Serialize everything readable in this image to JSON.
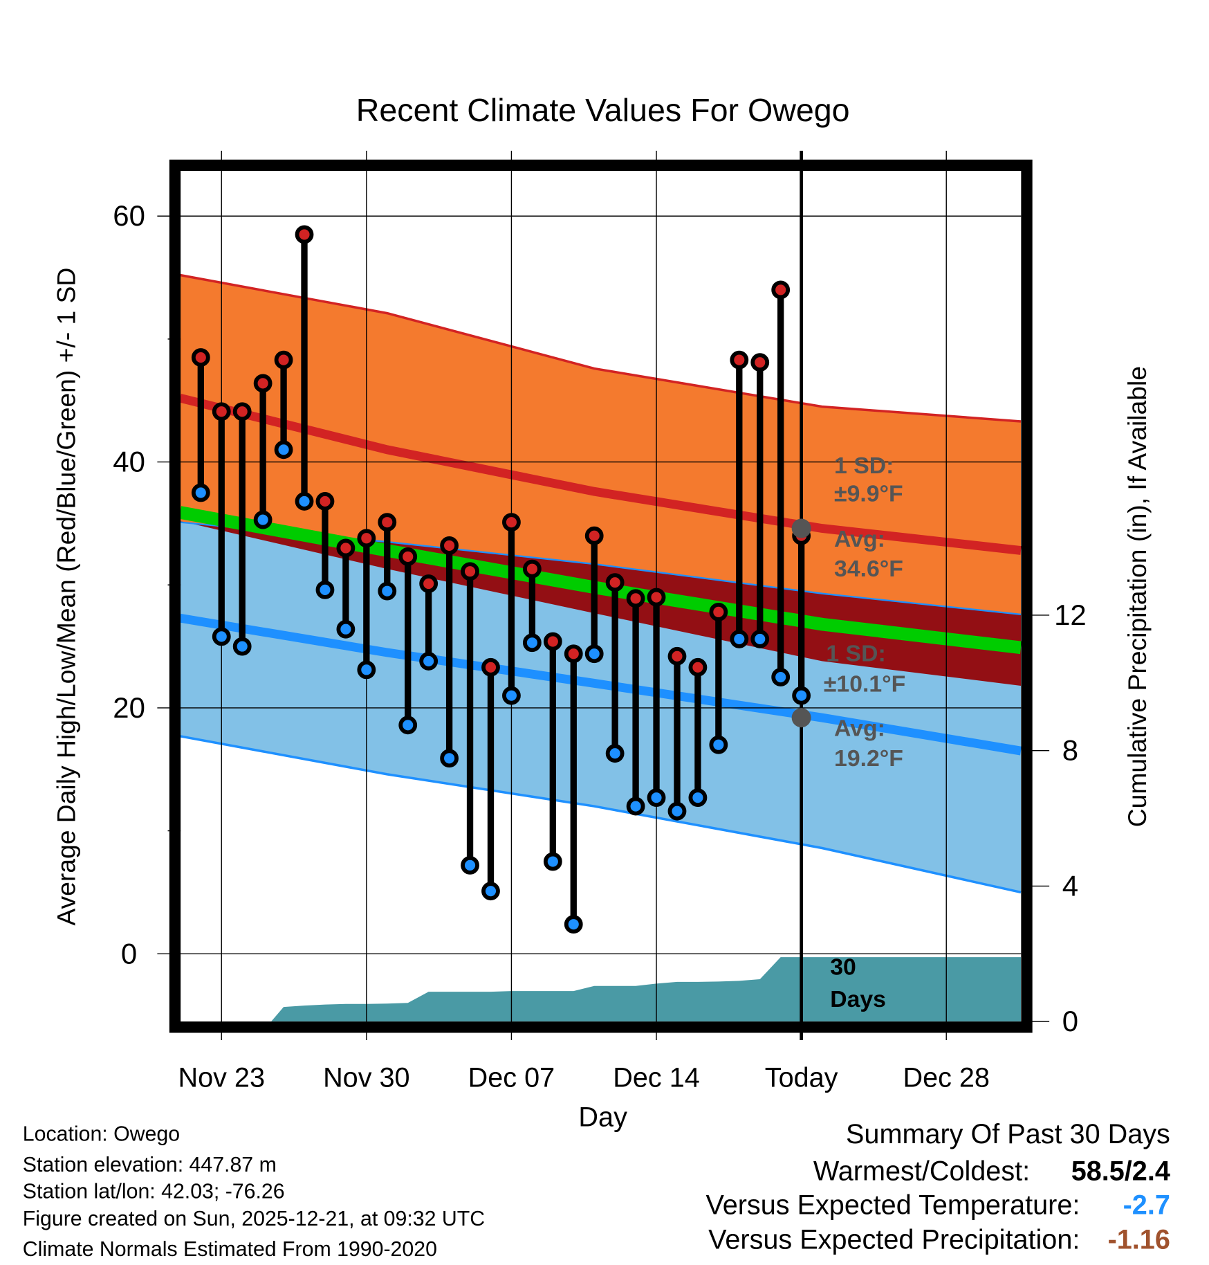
{
  "chart_data": {
    "type": "line",
    "title": "Recent Climate Values For Owego",
    "xlabel": "Day",
    "ylabel": "Average Daily High/Low/Mean (Red/Blue/Green) +/- 1 SD",
    "ylabel_right": "Cumulative Precipitation (in), If Available",
    "ylim": [
      -5,
      65
    ],
    "yticks": [
      0,
      20,
      40,
      60
    ],
    "ylim_right": [
      0,
      24
    ],
    "yticks_right": [
      0,
      4,
      8,
      12
    ],
    "xtick_labels": [
      "Nov 23",
      "Nov 30",
      "Dec 07",
      "Dec 14",
      "Today",
      "Dec 28"
    ],
    "xtick_days": [
      2,
      9,
      16,
      23,
      30,
      37
    ],
    "today_day": 30,
    "day_range": [
      -1,
      39.6
    ],
    "days": [
      "Nov 21",
      "Nov 22",
      "Nov 23",
      "Nov 24",
      "Nov 25",
      "Nov 26",
      "Nov 27",
      "Nov 28",
      "Nov 29",
      "Nov 30",
      "Dec 01",
      "Dec 02",
      "Dec 03",
      "Dec 04",
      "Dec 05",
      "Dec 06",
      "Dec 07",
      "Dec 08",
      "Dec 09",
      "Dec 10",
      "Dec 11",
      "Dec 12",
      "Dec 13",
      "Dec 14",
      "Dec 15",
      "Dec 16",
      "Dec 17",
      "Dec 18",
      "Dec 19",
      "Dec 20"
    ],
    "daily_high": [
      48.5,
      44.1,
      44.1,
      46.4,
      48.3,
      58.5,
      36.8,
      33.0,
      33.8,
      35.1,
      32.3,
      30.1,
      33.2,
      31.1,
      23.3,
      35.1,
      31.3,
      25.4,
      24.4,
      34.0,
      30.2,
      28.9,
      29.0,
      24.2,
      23.3,
      27.8,
      48.3,
      48.1,
      54.0,
      34.0
    ],
    "daily_low": [
      37.5,
      25.8,
      25.0,
      35.3,
      41.0,
      36.8,
      29.6,
      26.4,
      23.1,
      29.5,
      18.6,
      23.8,
      15.9,
      7.2,
      5.1,
      21.0,
      25.3,
      7.5,
      2.4,
      24.4,
      16.3,
      12.0,
      12.7,
      11.6,
      12.7,
      17.0,
      25.6,
      25.6,
      22.5,
      21.0
    ],
    "normals": {
      "days": [
        -1,
        9,
        19,
        30,
        39.6
      ],
      "high_upper": [
        55.2,
        52.1,
        47.6,
        44.5,
        43.3
      ],
      "high_mean": [
        45.2,
        41.0,
        37.6,
        34.6,
        32.8
      ],
      "high_lower": [
        35.2,
        31.3,
        27.7,
        23.8,
        21.8
      ],
      "mean": [
        35.9,
        32.8,
        29.8,
        26.8,
        24.9
      ],
      "low_upper": [
        35.1,
        33.5,
        31.7,
        29.3,
        27.6
      ],
      "low_mean": [
        27.3,
        24.5,
        22.0,
        19.2,
        16.5
      ],
      "low_lower": [
        17.7,
        14.6,
        12.0,
        8.6,
        5.0
      ]
    },
    "precip_cumulative": {
      "days": [
        -1,
        0,
        1,
        2,
        3,
        3.4,
        4,
        5,
        6,
        7,
        8,
        9,
        10,
        11,
        12,
        13,
        14,
        15,
        16,
        17,
        18,
        19,
        20,
        21,
        22,
        23,
        24,
        25,
        26,
        27,
        28,
        29,
        39.6
      ],
      "values": [
        0,
        0,
        0,
        0,
        0,
        0,
        0.43,
        0.47,
        0.5,
        0.52,
        0.52,
        0.53,
        0.55,
        0.88,
        0.88,
        0.88,
        0.88,
        0.9,
        0.9,
        0.9,
        0.9,
        1.05,
        1.05,
        1.05,
        1.12,
        1.17,
        1.17,
        1.18,
        1.2,
        1.25,
        1.9,
        1.9,
        1.9
      ]
    },
    "annotations": {
      "high_sd_label": "1 SD:",
      "high_sd_value": "±9.9°F",
      "high_avg_label": "Avg:",
      "high_avg_value": "34.6°F",
      "low_sd_label": "1 SD:",
      "low_sd_value": "±10.1°F",
      "low_avg_label": "Avg:",
      "low_avg_value": "19.2°F",
      "high_avg_point": 34.6,
      "low_avg_point": 19.2,
      "period_number": "30",
      "period_unit": "Days"
    },
    "colors": {
      "high_band": "#f47a2e",
      "high_line": "#d22323",
      "overlap_band": "#930f14",
      "mean_line": "#00cc00",
      "low_band": "#82c1e7",
      "low_line": "#1e90ff",
      "precip": "#4a9aa5",
      "annotation": "#555555"
    }
  },
  "footer": {
    "location": "Location: Owego",
    "elevation": "Station elevation: 447.87 m",
    "latlon": "Station lat/lon: 42.03; -76.26",
    "created": "Figure created on Sun, 2025-12-21, at 09:32 UTC",
    "normals": "Climate Normals Estimated From 1990-2020"
  },
  "summary": {
    "title": "Summary Of Past 30 Days",
    "warm_cold_label": "Warmest/Coldest:",
    "warm_cold_value": "58.5/2.4",
    "temp_label": "Versus Expected Temperature:",
    "temp_value": "-2.7",
    "temp_color": "#1e90ff",
    "precip_label": "Versus Expected Precipitation:",
    "precip_value": "-1.16",
    "precip_color": "#a0522d"
  }
}
